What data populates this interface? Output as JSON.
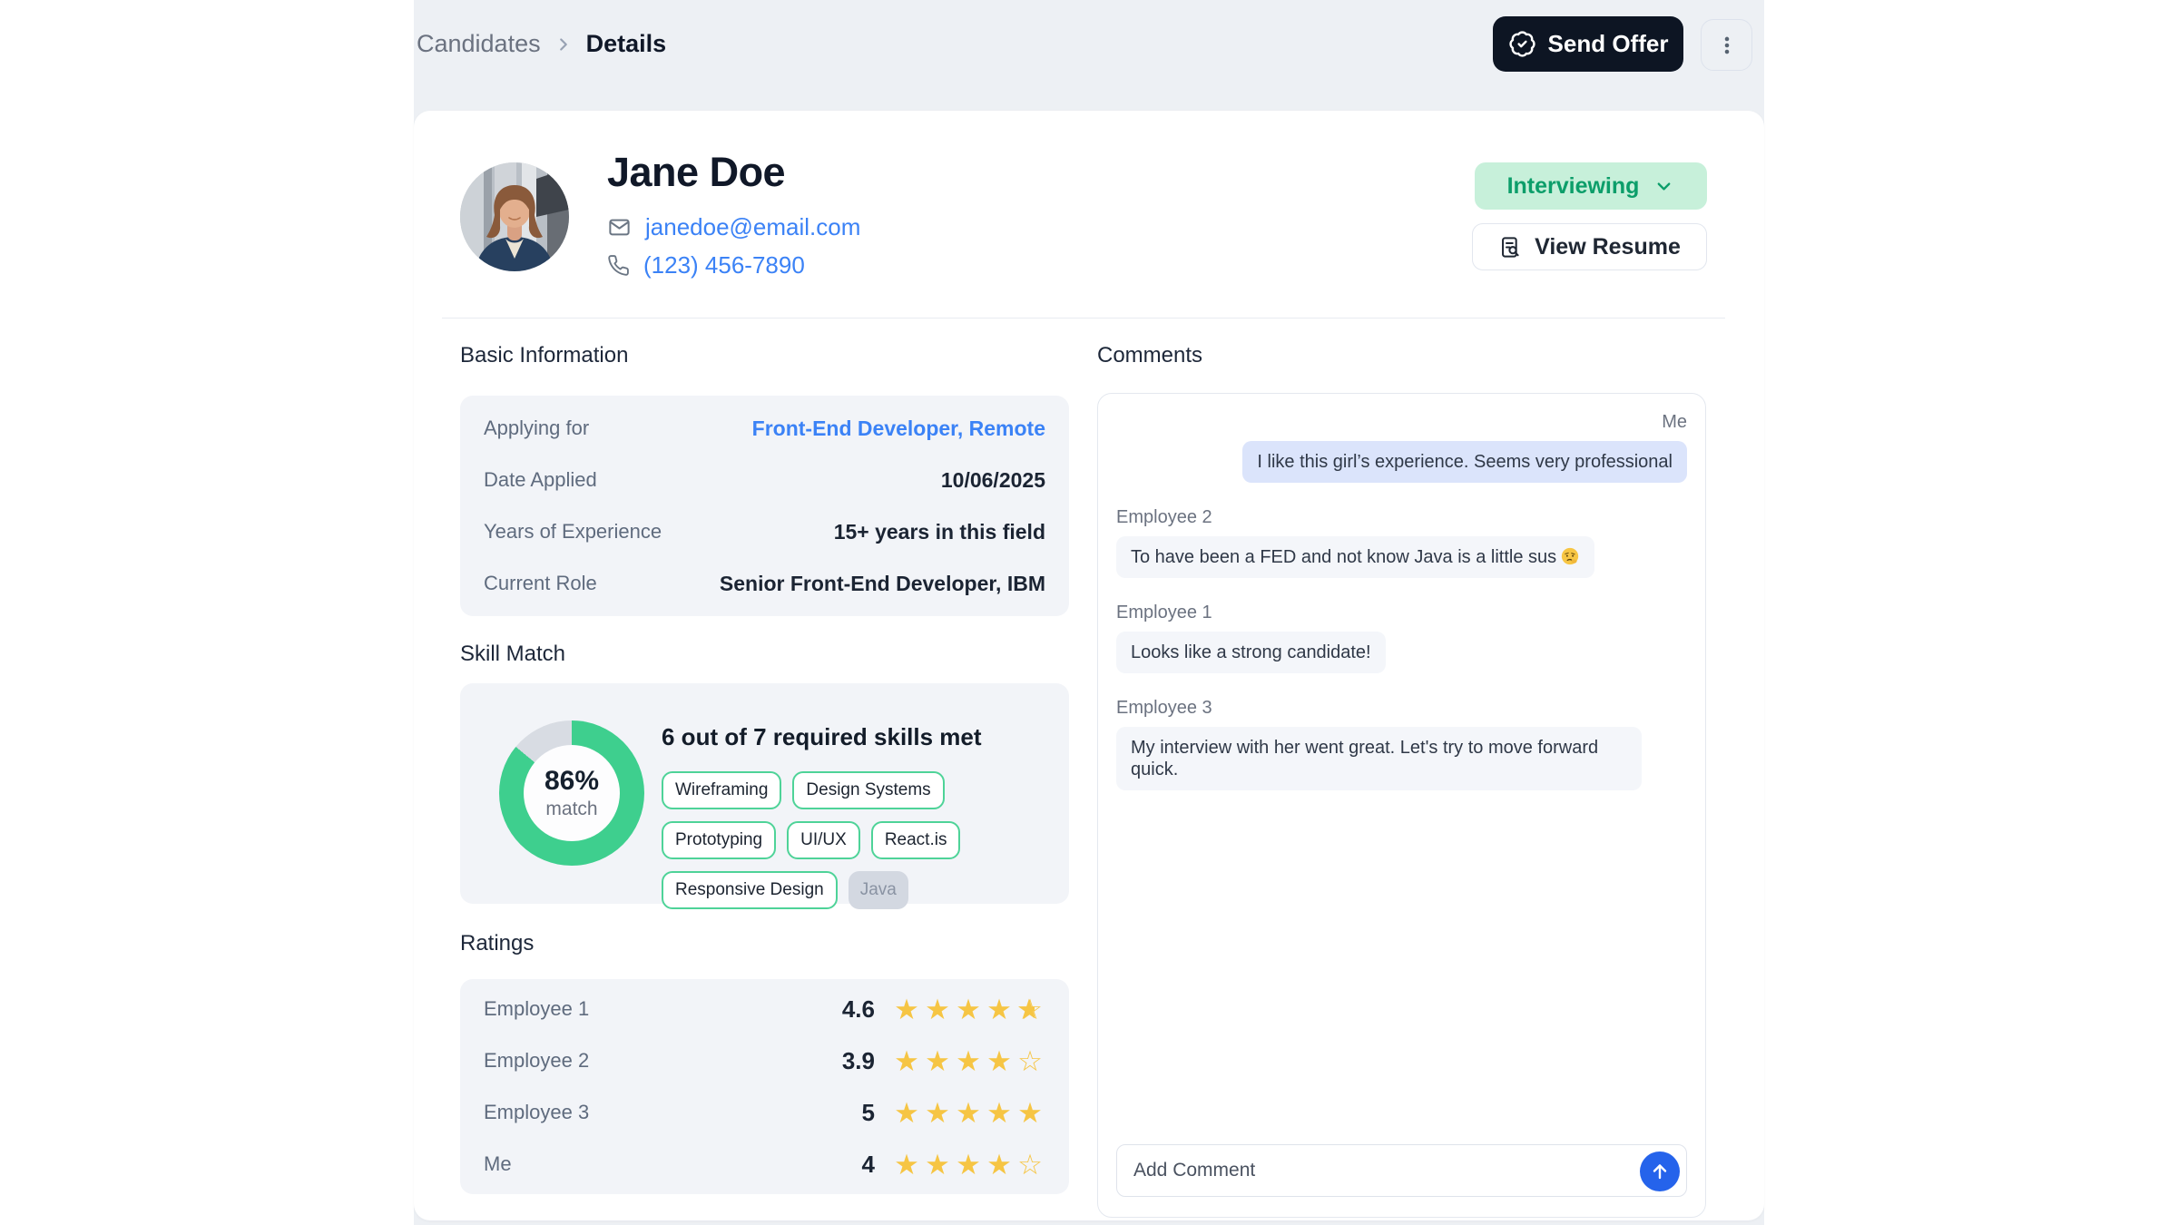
{
  "colors": {
    "app_background": "#edf0f4",
    "card_background": "#ffffff",
    "panel_background": "#f2f4f8",
    "heading_text": "#101828",
    "muted_text": "#5f6b7e",
    "link_blue": "#3b82f6",
    "status_green_bg": "#c7f0da",
    "status_green_text": "#0c9e6a",
    "chip_green_border": "#4ed398",
    "donut_green": "#3ecf8e",
    "donut_track": "#d8dce3",
    "star_gold": "#f6c544",
    "dark_button_bg": "#0d1523",
    "me_bubble_bg": "#dbe4fb",
    "other_bubble_bg": "#f4f6fa",
    "panel_border": "#e4e8ef",
    "send_button_blue": "#2563eb"
  },
  "breadcrumb": {
    "items": [
      "Candidates",
      "Details"
    ]
  },
  "toolbar": {
    "send_offer_label": "Send Offer",
    "kebab_icon": "three-vertical-dots"
  },
  "profile": {
    "name": "Jane Doe",
    "email": "janedoe@email.com",
    "phone": "(123) 456-7890",
    "status_label": "Interviewing",
    "view_resume_label": "View Resume"
  },
  "basic_information": {
    "title": "Basic Information",
    "rows": [
      {
        "label": "Applying for",
        "value": "Front-End Developer, Remote",
        "link": true
      },
      {
        "label": "Date Applied",
        "value": "10/06/2025",
        "link": false
      },
      {
        "label": "Years of Experience",
        "value": "15+ years in this field",
        "link": false
      },
      {
        "label": "Current Role",
        "value": "Senior Front-End Developer, IBM",
        "link": false
      }
    ]
  },
  "skill_match": {
    "title": "Skill Match",
    "percent": 86,
    "percent_label": "86%",
    "percent_sublabel": "match",
    "headline": "6 out of 7 required skills met",
    "skills": [
      {
        "label": "Wireframing",
        "matched": true
      },
      {
        "label": "Design Systems",
        "matched": true
      },
      {
        "label": "Prototyping",
        "matched": true
      },
      {
        "label": "UI/UX",
        "matched": true
      },
      {
        "label": "React.is",
        "matched": true
      },
      {
        "label": "Responsive Design",
        "matched": true
      },
      {
        "label": "Java",
        "matched": false
      }
    ]
  },
  "ratings": {
    "title": "Ratings",
    "rows": [
      {
        "name": "Employee 1",
        "score": "4.6",
        "value": 4.6
      },
      {
        "name": "Employee 2",
        "score": "3.9",
        "value": 3.9
      },
      {
        "name": "Employee 3",
        "score": "5",
        "value": 5
      },
      {
        "name": "Me",
        "score": "4",
        "value": 4
      }
    ]
  },
  "comments": {
    "title": "Comments",
    "messages": [
      {
        "author": "Me",
        "text": "I like this girl’s experience. Seems very professional",
        "align": "right"
      },
      {
        "author": "Employee 2",
        "text": "To have been a FED and not know Java is a little sus 🤔",
        "align": "left"
      },
      {
        "author": "Employee 1",
        "text": "Looks like a strong candidate!",
        "align": "left"
      },
      {
        "author": "Employee 3",
        "text": "My interview with her went great. Let's try to move forward quick.",
        "align": "left"
      }
    ],
    "input_placeholder": "Add Comment"
  },
  "icons": {
    "send_offer": "badge-check-icon",
    "status": "chevron-down-icon",
    "resume": "file-search-icon",
    "email": "mail-icon",
    "phone": "phone-icon",
    "send": "arrow-up-icon",
    "rating": "star-icon",
    "emoji": "thinking-face-emoji"
  }
}
